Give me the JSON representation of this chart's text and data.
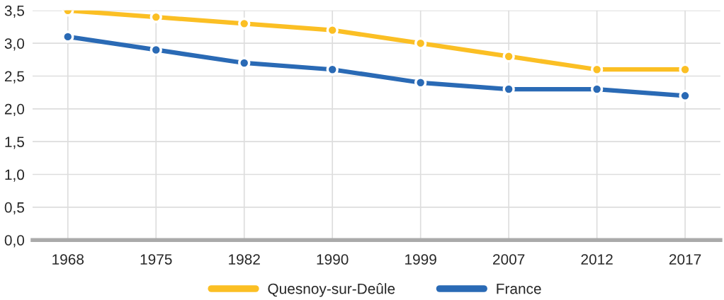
{
  "chart_data": {
    "type": "line",
    "categories": [
      "1968",
      "1975",
      "1982",
      "1990",
      "1999",
      "2007",
      "2012",
      "2017"
    ],
    "series": [
      {
        "name": "Quesnoy-sur-Deûle",
        "color": "#fbbf24",
        "values": [
          3.5,
          3.4,
          3.3,
          3.2,
          3.0,
          2.8,
          2.6,
          2.6
        ]
      },
      {
        "name": "France",
        "color": "#2a6ab5",
        "values": [
          3.1,
          2.9,
          2.7,
          2.6,
          2.4,
          2.3,
          2.3,
          2.2
        ]
      }
    ],
    "ylim": [
      0,
      3.5
    ],
    "yticks": [
      {
        "value": 0,
        "label": "0,0"
      },
      {
        "value": 0.5,
        "label": "0,5"
      },
      {
        "value": 1,
        "label": "1,0"
      },
      {
        "value": 1.5,
        "label": "1,5"
      },
      {
        "value": 2,
        "label": "2,0"
      },
      {
        "value": 2.5,
        "label": "2,5"
      },
      {
        "value": 3,
        "label": "3,0"
      },
      {
        "value": 3.5,
        "label": "3,5"
      }
    ],
    "grid": true,
    "legend": "bottom",
    "marker": "circle",
    "line_style": "solid"
  }
}
